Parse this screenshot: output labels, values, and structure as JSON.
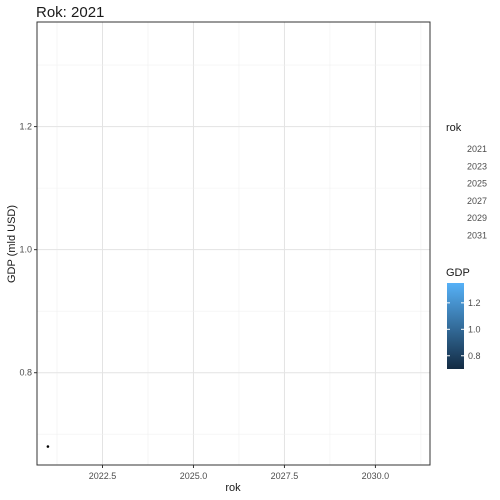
{
  "chart_data": {
    "type": "scatter",
    "title": "Rok: 2021",
    "xlabel": "rok",
    "ylabel": "GDP (mld USD)",
    "xlim": [
      2020.7,
      2031.5
    ],
    "ylim": [
      0.65,
      1.37
    ],
    "x_ticks": [
      2022.5,
      2025.0,
      2027.5,
      2030.0
    ],
    "x_tick_labels": [
      "2022.5",
      "2025.0",
      "2027.5",
      "2030.0"
    ],
    "y_ticks": [
      0.8,
      1.0,
      1.2
    ],
    "y_tick_labels": [
      "0.8",
      "1.0",
      "1.2"
    ],
    "grid": true,
    "points": [
      {
        "x": 2021,
        "y": 0.68,
        "color": "#000000"
      }
    ],
    "legend_rok": {
      "title": "rok",
      "entries": [
        "2021",
        "2023",
        "2025",
        "2027",
        "2029",
        "2031"
      ]
    },
    "legend_gdp": {
      "title": "GDP",
      "ticks": [
        0.8,
        1.0,
        1.2
      ],
      "tick_labels": [
        "0.8",
        "1.0",
        "1.2"
      ],
      "range": [
        0.7,
        1.35
      ],
      "color_low": "#132b43",
      "color_high": "#56b1f7"
    }
  }
}
